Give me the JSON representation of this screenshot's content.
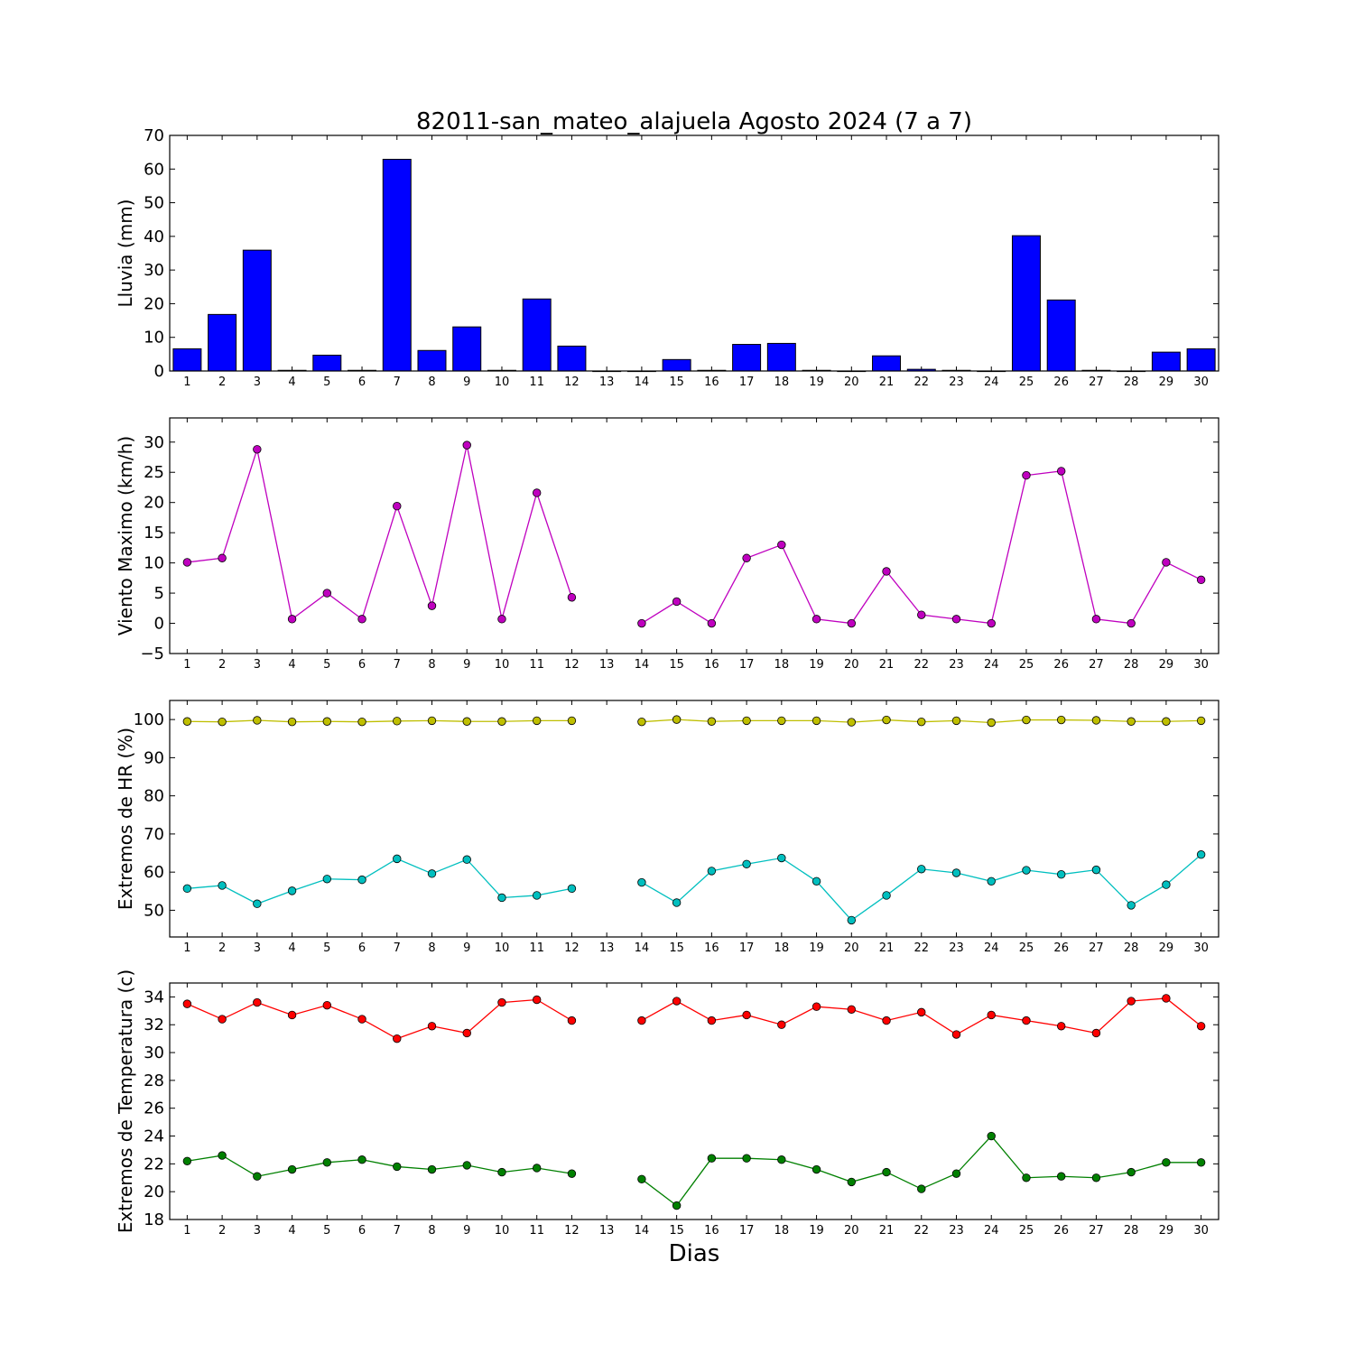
{
  "chart_data": {
    "title": "82011-san_mateo_alajuela Agosto 2024  (7 a 7)",
    "xlabel": "Dias",
    "days": [
      1,
      2,
      3,
      4,
      5,
      6,
      7,
      8,
      9,
      10,
      11,
      12,
      13,
      14,
      15,
      16,
      17,
      18,
      19,
      20,
      21,
      22,
      23,
      24,
      25,
      26,
      27,
      28,
      29,
      30
    ],
    "panels": [
      {
        "type": "bar",
        "ylabel": "Lluvia (mm)",
        "ylim": [
          0,
          70
        ],
        "yticks": [
          0,
          10,
          20,
          30,
          40,
          50,
          60,
          70
        ],
        "series": [
          {
            "color": "#0000ff",
            "values": [
              6.6,
              16.8,
              35.9,
              0.2,
              4.7,
              0.2,
              62.9,
              6.1,
              13.1,
              0.2,
              21.4,
              7.4,
              0,
              0,
              3.4,
              0.2,
              7.9,
              8.2,
              0.2,
              0,
              4.5,
              0.5,
              0.2,
              0,
              40.2,
              21.1,
              0.2,
              0,
              5.6,
              6.6
            ]
          }
        ]
      },
      {
        "type": "line",
        "ylabel": "Viento Maximo (km/h)",
        "ylim": [
          -5,
          34
        ],
        "yticks": [
          -5,
          0,
          5,
          10,
          15,
          20,
          25,
          30
        ],
        "series": [
          {
            "color": "#bf00bf",
            "values": [
              10.1,
              10.8,
              28.8,
              0.7,
              5.0,
              0.7,
              19.4,
              2.9,
              29.5,
              0.7,
              21.6,
              4.3,
              null,
              0.0,
              3.6,
              0.0,
              10.8,
              13.0,
              0.7,
              0.0,
              8.6,
              1.4,
              0.7,
              0.0,
              24.5,
              25.2,
              0.7,
              0.0,
              10.1,
              7.2
            ]
          }
        ]
      },
      {
        "type": "line",
        "ylabel": "Extremos de HR (%)",
        "ylim": [
          43,
          105
        ],
        "yticks": [
          50,
          60,
          70,
          80,
          90,
          100
        ],
        "series": [
          {
            "color": "#bfbf00",
            "values": [
              99.5,
              99.4,
              99.8,
              99.4,
              99.5,
              99.4,
              99.6,
              99.7,
              99.5,
              99.5,
              99.7,
              99.7,
              null,
              99.4,
              100.0,
              99.5,
              99.7,
              99.7,
              99.7,
              99.3,
              99.9,
              99.4,
              99.7,
              99.2,
              99.9,
              99.9,
              99.8,
              99.5,
              99.5,
              99.7
            ]
          },
          {
            "color": "#00bfbf",
            "values": [
              55.7,
              56.5,
              51.7,
              55.1,
              58.2,
              58.0,
              63.5,
              59.6,
              63.3,
              53.3,
              53.9,
              55.7,
              null,
              57.3,
              52.0,
              60.3,
              62.1,
              63.7,
              57.6,
              47.4,
              53.9,
              60.8,
              59.8,
              57.6,
              60.5,
              59.4,
              60.6,
              51.3,
              56.7,
              64.6
            ]
          }
        ]
      },
      {
        "type": "line",
        "ylabel": "Extremos de Temperatura (c)",
        "ylim": [
          18,
          35
        ],
        "yticks": [
          18,
          20,
          22,
          24,
          26,
          28,
          30,
          32,
          34
        ],
        "series": [
          {
            "color": "#ff0000",
            "values": [
              33.5,
              32.4,
              33.6,
              32.7,
              33.4,
              32.4,
              31.0,
              31.9,
              31.4,
              33.6,
              33.8,
              32.3,
              null,
              32.3,
              33.7,
              32.3,
              32.7,
              32.0,
              33.3,
              33.1,
              32.3,
              32.9,
              31.3,
              32.7,
              32.3,
              31.9,
              31.4,
              33.7,
              33.9,
              31.9
            ]
          },
          {
            "color": "#008000",
            "values": [
              22.2,
              22.6,
              21.1,
              21.6,
              22.1,
              22.3,
              21.8,
              21.6,
              21.9,
              21.4,
              21.7,
              21.3,
              null,
              20.9,
              19.0,
              22.4,
              22.4,
              22.3,
              21.6,
              20.7,
              21.4,
              20.2,
              21.3,
              24.0,
              21.0,
              21.1,
              21.0,
              21.4,
              22.1,
              22.1
            ]
          }
        ]
      }
    ]
  }
}
